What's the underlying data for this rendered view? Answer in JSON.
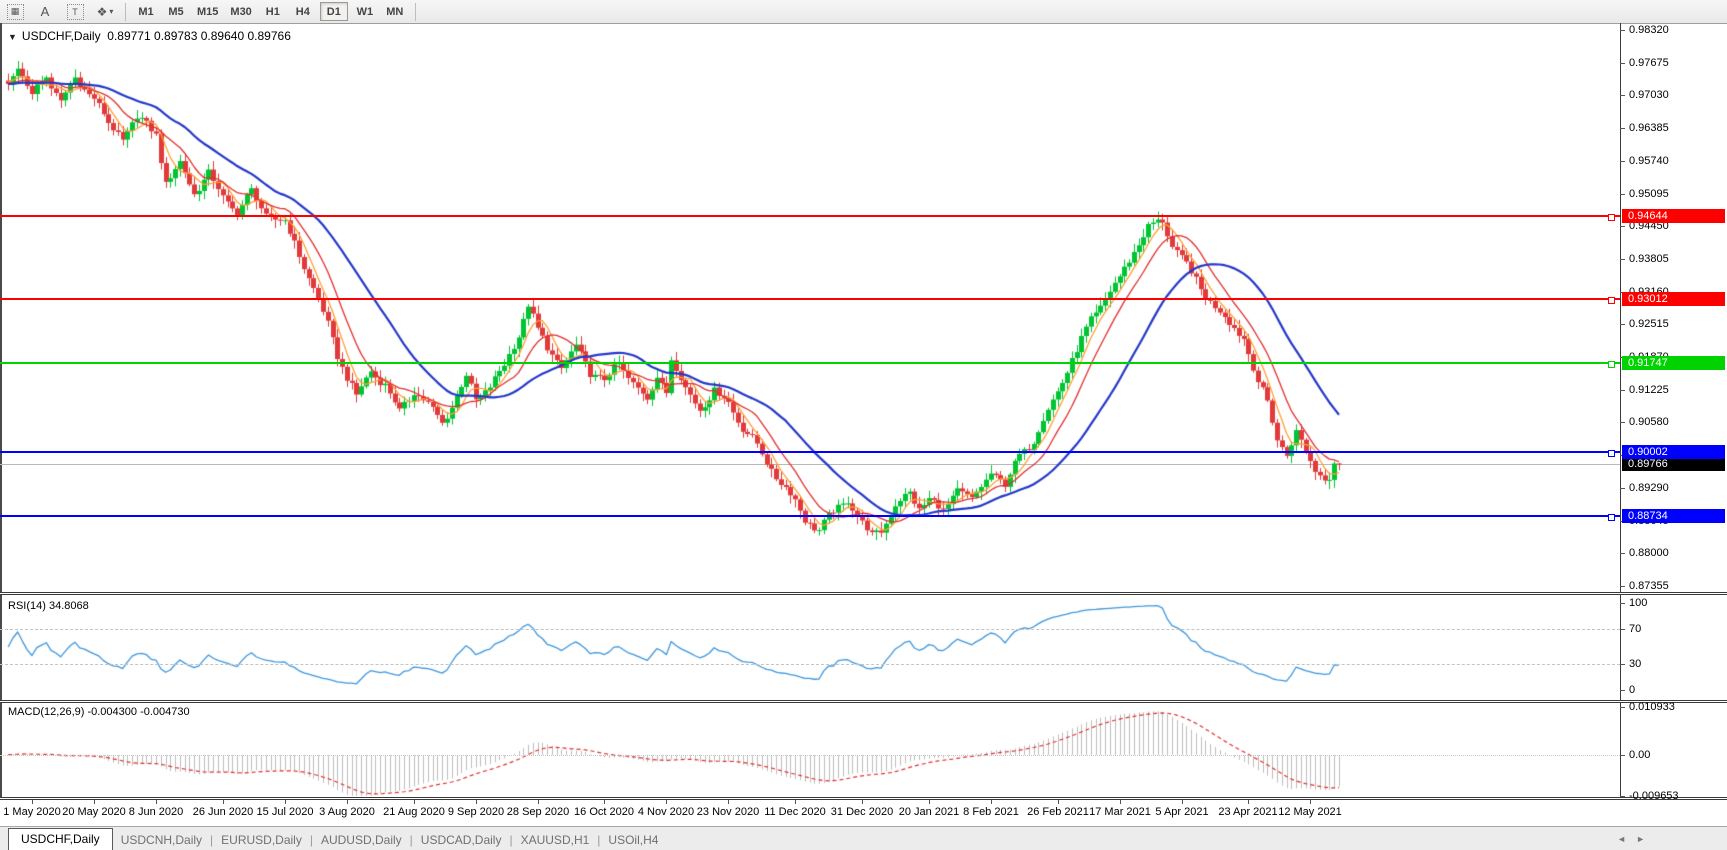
{
  "toolbar": {
    "tools": [
      {
        "name": "chart-window-icon",
        "glyph": "▦"
      },
      {
        "name": "text-label-icon",
        "glyph": "A"
      },
      {
        "name": "text-box-icon",
        "glyph": "T"
      },
      {
        "name": "cursor-mode-icon",
        "glyph": "❖"
      }
    ],
    "dropdown_caret": "▾",
    "timeframes": [
      "M1",
      "M5",
      "M15",
      "M30",
      "H1",
      "H4",
      "D1",
      "W1",
      "MN"
    ],
    "active_timeframe": "D1"
  },
  "chart_header": {
    "collapse_glyph": "▼",
    "symbol": "USDCHF,Daily",
    "open": "0.89771",
    "high": "0.89783",
    "low": "0.89640",
    "close": "0.89766"
  },
  "price_axis": {
    "ticks": [
      "0.98320",
      "0.97675",
      "0.97030",
      "0.96385",
      "0.95740",
      "0.95095",
      "0.94450",
      "0.93805",
      "0.93160",
      "0.92515",
      "0.91870",
      "0.91225",
      "0.90580",
      "0.89935",
      "0.89290",
      "0.88645",
      "0.88000",
      "0.87355"
    ],
    "top_value": 0.9832,
    "bottom_value": 0.87355
  },
  "line_labels": [
    {
      "name": "resistance-line-1",
      "text": "0.94644",
      "price": 0.94644,
      "color": "#FF0000"
    },
    {
      "name": "resistance-line-2",
      "text": "0.93012",
      "price": 0.93012,
      "color": "#FF0000"
    },
    {
      "name": "pivot-line",
      "text": "0.91747",
      "price": 0.91747,
      "color": "#00D300"
    },
    {
      "name": "support-line-1",
      "text": "0.90002",
      "price": 0.90002,
      "color": "#0000FF"
    },
    {
      "name": "support-line-2",
      "text": "0.88734",
      "price": 0.88734,
      "color": "#0000FF"
    }
  ],
  "current_price": {
    "text": "0.89766",
    "value": 0.89766,
    "bg": "#000000"
  },
  "rsi_panel": {
    "label": "RSI(14) 34.8068",
    "ticks": [
      {
        "text": "100",
        "value": 100
      },
      {
        "text": "70",
        "value": 70
      },
      {
        "text": "30",
        "value": 30
      },
      {
        "text": "0",
        "value": 0
      }
    ],
    "levels": [
      70,
      30
    ],
    "line_color": "#3E96DC"
  },
  "macd_panel": {
    "label": "MACD(12,26,9) -0.004300 -0.004730",
    "ticks": [
      {
        "text": "0.010933",
        "value": 0.010933
      },
      {
        "text": "0.00",
        "value": 0
      },
      {
        "text": "-0.009653",
        "value": -0.009653
      }
    ],
    "histogram_color": "#BDBDBD",
    "signal_color": "#E03030"
  },
  "date_axis": {
    "labels": [
      {
        "text": "1 May 2020",
        "day": 0
      },
      {
        "text": "20 May 2020",
        "day": 13
      },
      {
        "text": "8 Jun 2020",
        "day": 26
      },
      {
        "text": "26 Jun 2020",
        "day": 40
      },
      {
        "text": "15 Jul 2020",
        "day": 53
      },
      {
        "text": "3 Aug 2020",
        "day": 66
      },
      {
        "text": "21 Aug 2020",
        "day": 80
      },
      {
        "text": "9 Sep 2020",
        "day": 93
      },
      {
        "text": "28 Sep 2020",
        "day": 106
      },
      {
        "text": "16 Oct 2020",
        "day": 120
      },
      {
        "text": "4 Nov 2020",
        "day": 133
      },
      {
        "text": "23 Nov 2020",
        "day": 146
      },
      {
        "text": "11 Dec 2020",
        "day": 160
      },
      {
        "text": "31 Dec 2020",
        "day": 174
      },
      {
        "text": "20 Jan 2021",
        "day": 188
      },
      {
        "text": "8 Feb 2021",
        "day": 201
      },
      {
        "text": "26 Feb 2021",
        "day": 215
      },
      {
        "text": "17 Mar 2021",
        "day": 228
      },
      {
        "text": "5 Apr 2021",
        "day": 241
      },
      {
        "text": "23 Apr 2021",
        "day": 255
      },
      {
        "text": "12 May 2021",
        "day": 268
      }
    ]
  },
  "tabs": {
    "items": [
      {
        "label": "USDCHF,Daily",
        "active": true
      },
      {
        "label": "USDCNH,Daily",
        "active": false
      },
      {
        "label": "EURUSD,Daily",
        "active": false
      },
      {
        "label": "AUDUSD,Daily",
        "active": false
      },
      {
        "label": "USDCAD,Daily",
        "active": false
      },
      {
        "label": "XAUUSD,H1",
        "active": false
      },
      {
        "label": "USOil,H4",
        "active": false
      }
    ],
    "scroll_left": "◄",
    "scroll_right": "►"
  },
  "chart_data": {
    "type": "candlestick",
    "symbol": "USDCHF",
    "timeframe": "Daily",
    "title": "USDCHF,Daily",
    "quote": {
      "open": 0.89771,
      "high": 0.89783,
      "low": 0.8964,
      "close": 0.89766
    },
    "axis_range": {
      "top": 0.9832,
      "bottom": 0.87355
    },
    "horizontal_lines": [
      {
        "price": 0.94644,
        "color": "#FF0000"
      },
      {
        "price": 0.93012,
        "color": "#FF0000"
      },
      {
        "price": 0.91747,
        "color": "#00D300"
      },
      {
        "price": 0.90002,
        "color": "#0000FF"
      },
      {
        "price": 0.88734,
        "color": "#0000FF"
      }
    ],
    "candle_colors": {
      "bull": "#00C432",
      "bear": "#E23A3A"
    },
    "moving_averages": [
      {
        "name": "fast-ma",
        "period": 5,
        "color": "#FF9E33",
        "width": 1.3
      },
      {
        "name": "mid-ma",
        "period": 10,
        "color": "#E03030",
        "width": 1.3
      },
      {
        "name": "slow-ma",
        "period": 25,
        "color": "#2438C8",
        "width": 2.2
      }
    ],
    "indicators": {
      "rsi": {
        "period": 14,
        "last_value": 34.8068,
        "levels": [
          70,
          30
        ],
        "range": [
          0,
          100
        ]
      },
      "macd": {
        "fast": 12,
        "slow": 26,
        "signal": 9,
        "last_main": -0.0043,
        "last_signal": -0.00473,
        "range": [
          -0.009653,
          0.010933
        ]
      }
    },
    "first_day": -5,
    "last_day": 274,
    "close_anchors_by_day": [
      [
        -5,
        0.9725
      ],
      [
        -3,
        0.9758
      ],
      [
        0,
        0.9705
      ],
      [
        3,
        0.9742
      ],
      [
        6,
        0.969
      ],
      [
        9,
        0.9735
      ],
      [
        13,
        0.97
      ],
      [
        16,
        0.9645
      ],
      [
        19,
        0.9618
      ],
      [
        22,
        0.966
      ],
      [
        26,
        0.9628
      ],
      [
        28,
        0.953
      ],
      [
        31,
        0.9568
      ],
      [
        34,
        0.9512
      ],
      [
        37,
        0.9548
      ],
      [
        40,
        0.9502
      ],
      [
        43,
        0.9474
      ],
      [
        46,
        0.9512
      ],
      [
        49,
        0.9468
      ],
      [
        53,
        0.9452
      ],
      [
        56,
        0.939
      ],
      [
        59,
        0.9322
      ],
      [
        62,
        0.925
      ],
      [
        64,
        0.9192
      ],
      [
        66,
        0.9148
      ],
      [
        68,
        0.9108
      ],
      [
        71,
        0.9162
      ],
      [
        74,
        0.9132
      ],
      [
        77,
        0.9078
      ],
      [
        80,
        0.9122
      ],
      [
        83,
        0.9092
      ],
      [
        86,
        0.9058
      ],
      [
        88,
        0.9092
      ],
      [
        91,
        0.9148
      ],
      [
        93,
        0.9102
      ],
      [
        96,
        0.9132
      ],
      [
        99,
        0.9168
      ],
      [
        102,
        0.9232
      ],
      [
        104,
        0.9292
      ],
      [
        106,
        0.9238
      ],
      [
        108,
        0.9205
      ],
      [
        111,
        0.9168
      ],
      [
        114,
        0.9205
      ],
      [
        117,
        0.9158
      ],
      [
        120,
        0.9142
      ],
      [
        123,
        0.9172
      ],
      [
        126,
        0.9138
      ],
      [
        129,
        0.9102
      ],
      [
        131,
        0.9148
      ],
      [
        133,
        0.9122
      ],
      [
        134,
        0.9186
      ],
      [
        137,
        0.9122
      ],
      [
        140,
        0.9088
      ],
      [
        143,
        0.9118
      ],
      [
        146,
        0.9098
      ],
      [
        149,
        0.9048
      ],
      [
        152,
        0.9012
      ],
      [
        155,
        0.8965
      ],
      [
        158,
        0.8928
      ],
      [
        160,
        0.8902
      ],
      [
        162,
        0.8868
      ],
      [
        165,
        0.8845
      ],
      [
        168,
        0.8882
      ],
      [
        171,
        0.8908
      ],
      [
        174,
        0.8856
      ],
      [
        176,
        0.8836
      ],
      [
        178,
        0.8848
      ],
      [
        181,
        0.8892
      ],
      [
        184,
        0.892
      ],
      [
        186,
        0.889
      ],
      [
        188,
        0.8906
      ],
      [
        191,
        0.8882
      ],
      [
        194,
        0.8928
      ],
      [
        197,
        0.8902
      ],
      [
        201,
        0.8962
      ],
      [
        204,
        0.8932
      ],
      [
        207,
        0.8996
      ],
      [
        210,
        0.9022
      ],
      [
        213,
        0.9082
      ],
      [
        216,
        0.9142
      ],
      [
        219,
        0.9198
      ],
      [
        222,
        0.9262
      ],
      [
        225,
        0.9302
      ],
      [
        228,
        0.9342
      ],
      [
        231,
        0.9398
      ],
      [
        234,
        0.9442
      ],
      [
        237,
        0.9456
      ],
      [
        239,
        0.9408
      ],
      [
        242,
        0.9368
      ],
      [
        245,
        0.9322
      ],
      [
        248,
        0.9288
      ],
      [
        251,
        0.9252
      ],
      [
        254,
        0.9228
      ],
      [
        257,
        0.9135
      ],
      [
        259,
        0.9098
      ],
      [
        261,
        0.9028
      ],
      [
        263,
        0.8995
      ],
      [
        265,
        0.9035
      ],
      [
        267,
        0.9002
      ],
      [
        269,
        0.8968
      ],
      [
        271,
        0.8948
      ],
      [
        273,
        0.8945
      ],
      [
        274,
        0.89766
      ]
    ]
  }
}
